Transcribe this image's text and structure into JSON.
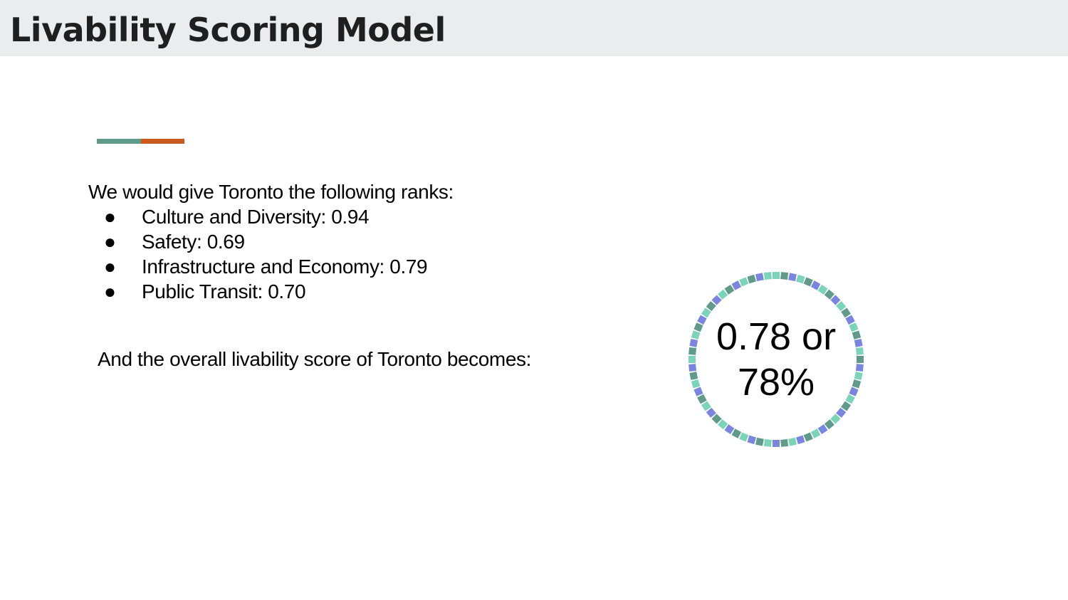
{
  "slide": {
    "title": "Livability Scoring Model",
    "accent_colors": [
      "#5f9a8b",
      "#cc5a1e"
    ],
    "intro": "We would give Toronto the following ranks:",
    "ranks": [
      {
        "bullet": "●",
        "label": "Culture and Diversity: 0.94"
      },
      {
        "bullet": "●",
        "label": "Safety: 0.69"
      },
      {
        "bullet": "●",
        "label": "Infrastructure and Economy: 0.79"
      },
      {
        "bullet": "●",
        "label": "Public Transit: 0.70"
      }
    ],
    "conclusion": "And the overall livability score of Toronto becomes:",
    "score": {
      "line1": "0.78 or",
      "line2": "78%",
      "ring_colors": [
        "#7ad4b8",
        "#5f9a8b",
        "#7a85e0"
      ]
    }
  }
}
